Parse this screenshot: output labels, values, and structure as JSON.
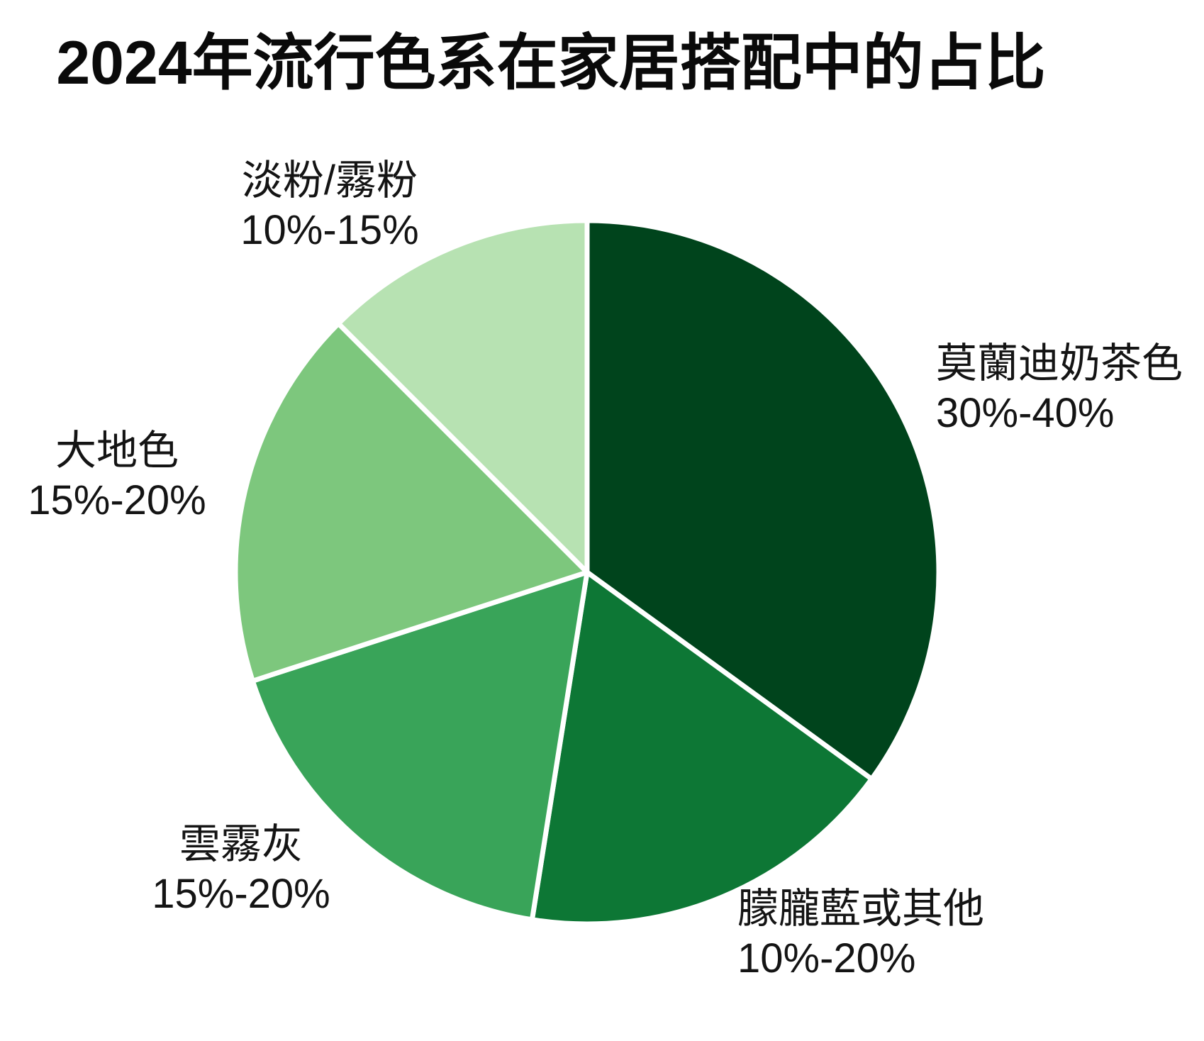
{
  "title": "2024年流行色系在家居搭配中的占比",
  "chart_data": {
    "type": "pie",
    "title": "2024年流行色系在家居搭配中的占比",
    "start_angle": "12-o-clock",
    "direction": "clockwise",
    "legend_position": "none",
    "grid": false,
    "slice_separator_color": "#ffffff",
    "slices": [
      {
        "label": "莫蘭迪奶茶色",
        "range_label": "30%-40%",
        "value": 35,
        "color": "#00441c"
      },
      {
        "label": "朦朧藍或其他",
        "range_label": "10%-20%",
        "value": 17.5,
        "color": "#0d7735"
      },
      {
        "label": "雲霧灰",
        "range_label": "15%-20%",
        "value": 17.5,
        "color": "#39a459"
      },
      {
        "label": "大地色",
        "range_label": "15%-20%",
        "value": 17.5,
        "color": "#7dc77d"
      },
      {
        "label": "淡粉/霧粉",
        "range_label": "10%-15%",
        "value": 12.5,
        "color": "#b7e2b2"
      }
    ]
  }
}
